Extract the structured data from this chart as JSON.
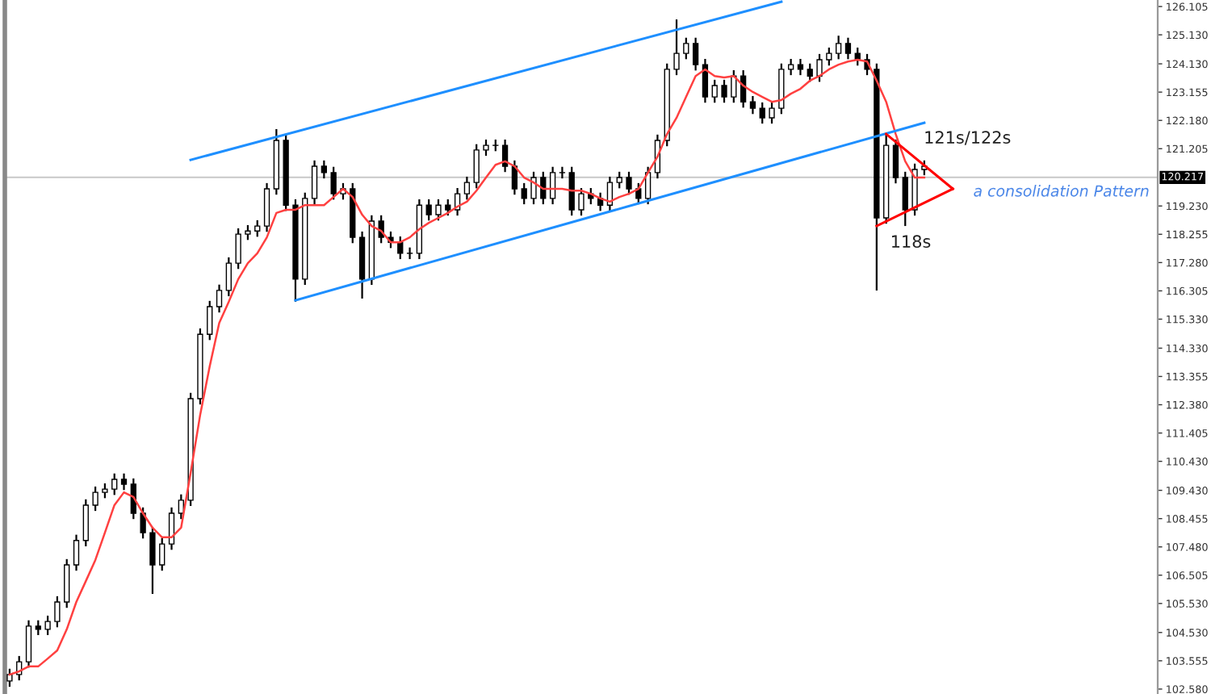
{
  "chart_data": {
    "type": "candlestick",
    "categories": [
      null,
      null,
      null,
      null,
      null,
      null,
      null,
      null,
      null,
      null,
      null,
      null,
      null,
      null,
      null,
      null,
      null,
      null,
      null,
      null,
      null,
      null,
      null,
      null,
      null,
      null,
      null,
      null,
      null,
      null,
      null,
      null,
      null,
      null,
      null,
      null,
      null,
      null,
      null,
      null,
      null,
      null,
      null,
      null,
      null,
      null,
      null,
      null,
      null,
      null,
      null,
      null,
      null,
      null,
      null,
      null,
      null,
      null,
      null,
      null,
      null,
      null,
      null,
      null,
      null,
      null,
      null,
      null,
      null,
      null,
      null,
      null,
      null,
      null,
      null,
      null,
      null,
      null,
      null,
      null,
      null,
      null,
      null,
      null,
      null,
      null,
      null,
      null,
      null,
      null,
      null,
      null,
      null,
      null,
      null,
      null,
      null,
      null,
      null,
      null,
      null,
      null,
      null,
      null,
      null,
      null,
      null,
      null,
      null,
      null,
      null,
      null,
      null,
      null,
      null,
      null,
      null,
      null,
      null,
      null,
      null
    ],
    "color": "#000000",
    "ohlc": [
      [
        102.86,
        103.28,
        102.66,
        103.08
      ],
      [
        103.08,
        103.72,
        102.88,
        103.52
      ],
      [
        103.52,
        104.95,
        103.32,
        104.75
      ],
      [
        104.75,
        104.95,
        104.44,
        104.64
      ],
      [
        104.64,
        105.11,
        104.44,
        104.91
      ],
      [
        104.91,
        105.78,
        104.71,
        105.58
      ],
      [
        105.58,
        107.06,
        105.38,
        106.86
      ],
      [
        106.86,
        107.9,
        106.66,
        107.7
      ],
      [
        107.7,
        109.12,
        107.5,
        108.92
      ],
      [
        108.92,
        109.56,
        108.72,
        109.36
      ],
      [
        109.36,
        109.67,
        109.16,
        109.47
      ],
      [
        109.47,
        110.01,
        109.27,
        109.81
      ],
      [
        109.81,
        110.01,
        109.44,
        109.64
      ],
      [
        109.64,
        109.84,
        108.44,
        108.64
      ],
      [
        108.64,
        108.84,
        107.77,
        107.97
      ],
      [
        107.97,
        108.17,
        105.86,
        106.86
      ],
      [
        106.86,
        107.78,
        106.66,
        107.58
      ],
      [
        107.58,
        108.84,
        107.38,
        108.64
      ],
      [
        108.64,
        109.29,
        108.44,
        109.09
      ],
      [
        109.09,
        112.79,
        108.89,
        112.59
      ],
      [
        112.59,
        115.01,
        112.39,
        114.81
      ],
      [
        114.81,
        115.96,
        114.61,
        115.76
      ],
      [
        115.76,
        116.52,
        115.56,
        116.32
      ],
      [
        116.32,
        117.46,
        116.12,
        117.26
      ],
      [
        117.26,
        118.46,
        117.06,
        118.26
      ],
      [
        118.26,
        118.57,
        118.06,
        118.37
      ],
      [
        118.37,
        118.74,
        118.17,
        118.54
      ],
      [
        118.54,
        120.02,
        118.34,
        119.82
      ],
      [
        119.82,
        121.88,
        119.62,
        121.49
      ],
      [
        121.49,
        121.69,
        119.06,
        119.26
      ],
      [
        119.26,
        119.46,
        115.93,
        116.71
      ],
      [
        116.71,
        119.69,
        116.51,
        119.49
      ],
      [
        119.49,
        120.8,
        119.29,
        120.6
      ],
      [
        120.6,
        120.8,
        120.18,
        120.38
      ],
      [
        120.38,
        120.58,
        119.45,
        119.65
      ],
      [
        119.65,
        120.02,
        119.45,
        119.82
      ],
      [
        119.82,
        120.02,
        117.95,
        118.15
      ],
      [
        118.15,
        118.35,
        116.04,
        116.71
      ],
      [
        116.71,
        118.91,
        116.51,
        118.71
      ],
      [
        118.71,
        118.91,
        117.95,
        118.15
      ],
      [
        118.15,
        118.35,
        117.78,
        117.98
      ],
      [
        117.98,
        118.18,
        117.4,
        117.6
      ],
      [
        117.6,
        117.8,
        117.4,
        117.6
      ],
      [
        117.6,
        119.46,
        117.4,
        119.26
      ],
      [
        119.26,
        119.46,
        118.73,
        118.93
      ],
      [
        118.93,
        119.46,
        118.73,
        119.26
      ],
      [
        119.26,
        119.46,
        118.9,
        119.1
      ],
      [
        119.1,
        119.85,
        118.9,
        119.65
      ],
      [
        119.65,
        120.24,
        119.45,
        120.04
      ],
      [
        120.04,
        121.36,
        119.84,
        121.16
      ],
      [
        121.16,
        121.52,
        120.96,
        121.32
      ],
      [
        121.32,
        121.52,
        121.12,
        121.32
      ],
      [
        121.32,
        121.52,
        120.4,
        120.6
      ],
      [
        120.6,
        120.8,
        119.62,
        119.82
      ],
      [
        119.82,
        120.02,
        119.29,
        119.49
      ],
      [
        119.49,
        120.41,
        119.29,
        120.21
      ],
      [
        120.21,
        120.41,
        119.29,
        119.49
      ],
      [
        119.49,
        120.58,
        119.29,
        120.38
      ],
      [
        120.38,
        120.58,
        120.18,
        120.38
      ],
      [
        120.38,
        120.58,
        118.9,
        119.1
      ],
      [
        119.1,
        119.85,
        118.9,
        119.65
      ],
      [
        119.65,
        119.85,
        119.29,
        119.49
      ],
      [
        119.49,
        119.69,
        119.06,
        119.26
      ],
      [
        119.26,
        120.24,
        119.06,
        120.04
      ],
      [
        120.04,
        120.41,
        119.84,
        120.21
      ],
      [
        120.21,
        120.41,
        119.62,
        119.82
      ],
      [
        119.82,
        120.02,
        119.29,
        119.49
      ],
      [
        119.49,
        120.58,
        119.29,
        120.38
      ],
      [
        120.38,
        121.69,
        120.18,
        121.49
      ],
      [
        121.49,
        124.14,
        121.29,
        123.94
      ],
      [
        123.94,
        125.66,
        123.74,
        124.49
      ],
      [
        124.49,
        125.03,
        124.29,
        124.83
      ],
      [
        124.83,
        125.03,
        123.9,
        124.1
      ],
      [
        124.1,
        124.3,
        122.79,
        122.99
      ],
      [
        122.99,
        123.58,
        122.79,
        123.38
      ],
      [
        123.38,
        123.58,
        122.79,
        122.99
      ],
      [
        122.99,
        123.91,
        122.79,
        123.71
      ],
      [
        123.71,
        123.91,
        122.62,
        122.82
      ],
      [
        122.82,
        123.02,
        122.4,
        122.6
      ],
      [
        122.6,
        122.8,
        122.07,
        122.27
      ],
      [
        122.27,
        122.8,
        122.07,
        122.6
      ],
      [
        122.6,
        124.14,
        122.4,
        123.94
      ],
      [
        123.94,
        124.3,
        123.74,
        124.1
      ],
      [
        124.1,
        124.3,
        123.74,
        123.94
      ],
      [
        123.94,
        124.14,
        123.51,
        123.71
      ],
      [
        123.71,
        124.47,
        123.51,
        124.27
      ],
      [
        124.27,
        124.69,
        124.07,
        124.49
      ],
      [
        124.49,
        125.1,
        124.29,
        124.83
      ],
      [
        124.83,
        125.03,
        124.29,
        124.49
      ],
      [
        124.49,
        124.69,
        124.07,
        124.27
      ],
      [
        124.27,
        124.47,
        123.74,
        123.94
      ],
      [
        123.94,
        124.14,
        116.32,
        118.82
      ],
      [
        118.82,
        121.71,
        118.62,
        121.32
      ],
      [
        121.32,
        121.52,
        120.01,
        120.21
      ],
      [
        120.21,
        120.41,
        118.54,
        119.1
      ],
      [
        119.1,
        120.69,
        118.9,
        120.49
      ],
      [
        120.49,
        120.8,
        120.29,
        120.6
      ],
      null,
      null,
      null,
      null,
      null,
      null,
      null,
      null,
      null,
      null,
      null,
      null,
      null,
      null,
      null,
      null,
      null,
      null,
      null,
      null,
      null,
      null,
      null,
      null
    ],
    "series": [
      {
        "type": "line",
        "color": "#ff4040",
        "values": [
          103.08,
          103.19,
          103.36,
          103.36,
          103.63,
          103.91,
          104.64,
          105.58,
          106.3,
          107.03,
          107.97,
          108.92,
          109.36,
          109.2,
          108.64,
          108.14,
          107.81,
          107.81,
          108.14,
          110.03,
          112.03,
          113.7,
          115.2,
          115.93,
          116.71,
          117.26,
          117.6,
          118.15,
          118.99,
          119.1,
          119.1,
          119.26,
          119.26,
          119.26,
          119.54,
          119.82,
          119.54,
          118.93,
          118.54,
          118.37,
          117.98,
          117.98,
          118.15,
          118.43,
          118.65,
          118.82,
          118.99,
          119.21,
          119.38,
          119.76,
          120.21,
          120.65,
          120.77,
          120.6,
          120.21,
          120.04,
          119.82,
          119.82,
          119.82,
          119.76,
          119.76,
          119.65,
          119.49,
          119.38,
          119.54,
          119.65,
          119.82,
          120.38,
          120.93,
          121.71,
          122.27,
          122.99,
          123.71,
          123.94,
          123.71,
          123.66,
          123.71,
          123.38,
          123.16,
          122.99,
          122.82,
          122.88,
          123.1,
          123.27,
          123.55,
          123.71,
          123.94,
          124.1,
          124.21,
          124.27,
          124.21,
          123.55,
          122.82,
          121.71,
          120.77,
          120.21,
          120.21,
          null,
          null,
          null,
          null,
          null,
          null,
          null,
          null,
          null,
          null,
          null,
          null,
          null,
          null,
          null,
          null,
          null,
          null,
          null,
          null,
          null,
          null,
          null,
          null
        ]
      },
      {
        "type": "line",
        "color": "#1e8fff",
        "values": [
          null,
          null,
          null,
          null,
          null,
          null,
          null,
          null,
          null,
          null,
          null,
          null,
          null,
          null,
          null,
          null,
          null,
          null,
          null,
          120.82,
          null,
          null,
          null,
          null,
          null,
          null,
          null,
          null,
          null,
          null,
          null,
          null,
          null,
          null,
          null,
          null,
          null,
          null,
          null,
          null,
          null,
          null,
          null,
          null,
          null,
          null,
          null,
          null,
          null,
          null,
          null,
          null,
          null,
          null,
          null,
          null,
          null,
          null,
          null,
          null,
          null,
          null,
          null,
          null,
          null,
          null,
          null,
          null,
          null,
          null,
          null,
          null,
          null,
          null,
          null,
          null,
          null,
          null,
          null,
          null,
          null,
          126.27,
          null,
          null,
          null,
          null,
          null,
          null,
          null,
          null,
          null,
          null,
          null,
          null,
          null,
          null,
          null,
          null,
          null,
          null,
          null,
          null,
          null,
          null,
          null,
          null,
          null,
          null,
          null,
          null,
          null,
          null,
          null,
          null,
          null,
          null,
          null,
          null,
          null,
          null,
          null
        ]
      },
      {
        "type": "line",
        "color": "#1e8fff",
        "values": [
          null,
          null,
          null,
          null,
          null,
          null,
          null,
          null,
          null,
          null,
          null,
          null,
          null,
          null,
          null,
          null,
          null,
          null,
          null,
          null,
          null,
          null,
          null,
          null,
          null,
          null,
          null,
          null,
          null,
          null,
          115.98,
          null,
          null,
          null,
          null,
          null,
          null,
          null,
          null,
          null,
          null,
          null,
          null,
          null,
          null,
          null,
          null,
          null,
          null,
          null,
          null,
          null,
          null,
          null,
          null,
          null,
          null,
          null,
          null,
          null,
          null,
          null,
          null,
          null,
          null,
          null,
          null,
          null,
          null,
          null,
          null,
          null,
          null,
          null,
          null,
          null,
          null,
          null,
          null,
          null,
          null,
          null,
          null,
          null,
          null,
          null,
          null,
          null,
          null,
          null,
          null,
          null,
          null,
          null,
          null,
          null,
          122.1,
          null,
          null,
          null,
          null,
          null,
          null,
          null,
          null,
          null,
          null,
          null,
          null,
          null,
          null,
          null,
          null,
          null,
          null,
          null,
          null,
          null,
          null,
          null,
          null
        ]
      },
      {
        "type": "line",
        "color": "#ff0000",
        "values": [
          null,
          null,
          null,
          null,
          null,
          null,
          null,
          null,
          null,
          null,
          null,
          null,
          null,
          null,
          null,
          null,
          null,
          null,
          null,
          null,
          null,
          null,
          null,
          null,
          null,
          null,
          null,
          null,
          null,
          null,
          null,
          null,
          null,
          null,
          null,
          null,
          null,
          null,
          null,
          null,
          null,
          null,
          null,
          null,
          null,
          null,
          null,
          null,
          null,
          null,
          null,
          null,
          null,
          null,
          null,
          null,
          null,
          null,
          null,
          null,
          null,
          null,
          null,
          null,
          null,
          null,
          null,
          null,
          null,
          null,
          null,
          null,
          null,
          null,
          null,
          null,
          null,
          null,
          null,
          null,
          null,
          null,
          null,
          null,
          null,
          null,
          null,
          null,
          null,
          null,
          null,
          null,
          121.71,
          null,
          null,
          null,
          null,
          null,
          null,
          119.82,
          null,
          null,
          null,
          null,
          null,
          null,
          null,
          null,
          null,
          null,
          null,
          null,
          null,
          null,
          null,
          null,
          null,
          null,
          null,
          null,
          null
        ]
      },
      {
        "type": "line",
        "color": "#ff0000",
        "values": [
          null,
          null,
          null,
          null,
          null,
          null,
          null,
          null,
          null,
          null,
          null,
          null,
          null,
          null,
          null,
          null,
          null,
          null,
          null,
          null,
          null,
          null,
          null,
          null,
          null,
          null,
          null,
          null,
          null,
          null,
          null,
          null,
          null,
          null,
          null,
          null,
          null,
          null,
          null,
          null,
          null,
          null,
          null,
          null,
          null,
          null,
          null,
          null,
          null,
          null,
          null,
          null,
          null,
          null,
          null,
          null,
          null,
          null,
          null,
          null,
          null,
          null,
          null,
          null,
          null,
          null,
          null,
          null,
          null,
          null,
          null,
          null,
          null,
          null,
          null,
          null,
          null,
          null,
          null,
          null,
          null,
          null,
          null,
          null,
          null,
          null,
          null,
          null,
          null,
          null,
          null,
          118.54,
          null,
          null,
          null,
          null,
          null,
          null,
          null,
          119.82,
          null,
          null,
          null,
          null,
          null,
          null,
          null,
          null,
          null,
          null,
          null,
          null,
          null,
          null,
          null,
          null,
          null,
          null,
          null,
          null,
          null
        ]
      }
    ],
    "ylim": [
      102.41,
      126.33
    ],
    "yticks": [
      {
        "value": 102.58,
        "label": "102.580"
      },
      103.555,
      {
        "value": 104.53,
        "label": "104.530"
      },
      {
        "value": 105.53,
        "label": "105.530"
      },
      106.505,
      {
        "value": 107.48,
        "label": "107.480"
      },
      108.455,
      {
        "value": 109.43,
        "label": "109.430"
      },
      {
        "value": 110.43,
        "label": "110.430"
      },
      111.405,
      {
        "value": 112.38,
        "label": "112.380"
      },
      113.355,
      {
        "value": 114.33,
        "label": "114.330"
      },
      {
        "value": 115.33,
        "label": "115.330"
      },
      116.305,
      {
        "value": 117.28,
        "label": "117.280"
      },
      118.255,
      {
        "value": 119.23,
        "label": "119.230"
      },
      121.205,
      {
        "value": 122.18,
        "label": "122.180"
      },
      123.155,
      {
        "value": 124.13,
        "label": "124.130"
      },
      {
        "value": 125.13,
        "label": "125.130"
      },
      126.105
    ],
    "ref_lines": [
      {
        "axis": "y",
        "value": 120.217,
        "label": "120.217",
        "color": "#c8c8c8"
      }
    ],
    "annotations": [
      "121s/122s",
      "118s",
      "a consolidation Pattern"
    ],
    "tick_labels": "y",
    "grid": false,
    "legend": false
  }
}
